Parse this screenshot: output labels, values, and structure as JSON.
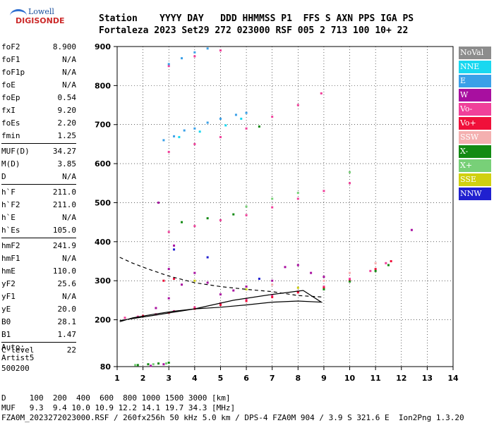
{
  "logo": {
    "top": "Lowell",
    "bottom": "DIGISONDE"
  },
  "header": {
    "line1": "Station    YYYY DAY   DDD HHMMSS P1  FFS S AXN PPS IGA PS",
    "line2": "Fortaleza 2023 Set29 272 023000 RSF 005 2 713 100 10+ 22"
  },
  "params": [
    {
      "name": "foF2",
      "value": "8.900"
    },
    {
      "name": "foF1",
      "value": "N/A"
    },
    {
      "name": "foF1p",
      "value": "N/A"
    },
    {
      "name": "foE",
      "value": "N/A"
    },
    {
      "name": "foEp",
      "value": "0.54"
    },
    {
      "name": "fxI",
      "value": "9.20"
    },
    {
      "name": "foEs",
      "value": "2.20"
    },
    {
      "name": "fmin",
      "value": "1.25"
    },
    {
      "sep": true
    },
    {
      "name": "MUF(D)",
      "value": "34.27"
    },
    {
      "name": "M(D)",
      "value": "3.85"
    },
    {
      "name": "D",
      "value": "N/A"
    },
    {
      "sep": true
    },
    {
      "name": "h`F",
      "value": "211.0"
    },
    {
      "name": "h`F2",
      "value": "211.0"
    },
    {
      "name": "h`E",
      "value": "N/A"
    },
    {
      "name": "h`Es",
      "value": "105.0"
    },
    {
      "sep": true
    },
    {
      "name": "hmF2",
      "value": "241.9"
    },
    {
      "name": "hmF1",
      "value": "N/A"
    },
    {
      "name": "hmE",
      "value": "110.0"
    },
    {
      "name": "yF2",
      "value": "25.6"
    },
    {
      "name": "yF1",
      "value": "N/A"
    },
    {
      "name": "yE",
      "value": "20.0"
    },
    {
      "name": "B0",
      "value": "28.1"
    },
    {
      "name": "B1",
      "value": "1.47"
    },
    {
      "sep": true
    },
    {
      "name": "C-level",
      "value": "22"
    }
  ],
  "auto": {
    "line1": "Auto:",
    "line2": "Artist5",
    "line3": "500200"
  },
  "footer": {
    "line1": "D     100  200  400  600  800 1000 1500 3000 [km]",
    "line2": "MUF   9.3  9.4 10.0 10.9 12.2 14.1 19.7 34.3 [MHz]",
    "line3": "FZA0M_2023272023000.RSF / 260fx256h 50 kHz 5.0 km / DPS-4 FZA0M 904 / 3.9 S 321.6 E  Ion2Png 1.3.20"
  },
  "legend": [
    {
      "label": "NoVal",
      "color": "#8c8c8c"
    },
    {
      "label": "NNE",
      "color": "#19d8f0"
    },
    {
      "label": "E",
      "color": "#3aa0e8"
    },
    {
      "label": "W",
      "color": "#a80fa0"
    },
    {
      "label": "Vo-",
      "color": "#f0409a"
    },
    {
      "label": "Vo+",
      "color": "#f0103a"
    },
    {
      "label": "SSW",
      "color": "#f4b0b0"
    },
    {
      "label": "X-",
      "color": "#128a12"
    },
    {
      "label": "X+",
      "color": "#78d078"
    },
    {
      "label": "SSE",
      "color": "#d0d010"
    },
    {
      "label": "NNW",
      "color": "#2020d0"
    }
  ],
  "chart_data": {
    "type": "scatter",
    "xlim": [
      1,
      14
    ],
    "ylim": [
      80,
      900
    ],
    "xticks": [
      "1",
      "2",
      "3",
      "4",
      "5",
      "6",
      "7",
      "8",
      "9",
      "10",
      "11",
      "12",
      "13",
      "14"
    ],
    "yticks": [
      "80",
      "200",
      "300",
      "400",
      "500",
      "600",
      "700",
      "800",
      "900"
    ],
    "grid": true,
    "series": [
      {
        "mode": "Vo-",
        "color": "#f0409a",
        "points": [
          [
            1.3,
            205
          ],
          [
            1.8,
            208
          ],
          [
            2.5,
            214
          ],
          [
            3.2,
            222
          ],
          [
            4,
            232
          ],
          [
            5,
            242
          ],
          [
            6,
            252
          ],
          [
            7,
            262
          ],
          [
            8,
            272
          ],
          [
            9,
            285
          ],
          [
            10,
            305
          ],
          [
            10.8,
            325
          ],
          [
            11.4,
            345
          ],
          [
            3,
            425
          ],
          [
            4,
            440
          ],
          [
            5,
            455
          ],
          [
            6,
            468
          ],
          [
            7,
            488
          ],
          [
            8,
            510
          ],
          [
            9,
            530
          ],
          [
            10,
            550
          ],
          [
            3,
            630
          ],
          [
            4,
            650
          ],
          [
            5,
            668
          ],
          [
            6,
            690
          ],
          [
            7,
            720
          ],
          [
            8,
            750
          ],
          [
            8.9,
            780
          ],
          [
            3,
            850
          ],
          [
            4,
            875
          ],
          [
            5,
            890
          ]
        ]
      },
      {
        "mode": "Vo+",
        "color": "#f0103a",
        "points": [
          [
            2,
            210
          ],
          [
            3,
            218
          ],
          [
            4,
            228
          ],
          [
            5,
            238
          ],
          [
            6,
            248
          ],
          [
            7,
            258
          ],
          [
            8,
            270
          ],
          [
            9,
            282
          ],
          [
            10,
            300
          ],
          [
            11,
            330
          ],
          [
            11.6,
            350
          ],
          [
            2.8,
            300
          ],
          [
            3.2,
            305
          ]
        ]
      },
      {
        "mode": "X-",
        "color": "#128a12",
        "points": [
          [
            1.8,
            84
          ],
          [
            2.2,
            86
          ],
          [
            2.6,
            88
          ],
          [
            3,
            90
          ],
          [
            3.5,
            450
          ],
          [
            4.5,
            460
          ],
          [
            5.5,
            470
          ],
          [
            6.5,
            695
          ],
          [
            9,
            278
          ],
          [
            10,
            298
          ],
          [
            11,
            325
          ],
          [
            11.5,
            340
          ]
        ]
      },
      {
        "mode": "X+",
        "color": "#78d078",
        "points": [
          [
            1.7,
            84
          ],
          [
            2.4,
            86
          ],
          [
            2.9,
            88
          ],
          [
            6,
            490
          ],
          [
            7,
            510
          ],
          [
            8,
            525
          ],
          [
            10,
            578
          ]
        ]
      },
      {
        "mode": "E",
        "color": "#3aa0e8",
        "points": [
          [
            2.8,
            660
          ],
          [
            3.2,
            670
          ],
          [
            3.6,
            685
          ],
          [
            4,
            690
          ],
          [
            4.5,
            705
          ],
          [
            5,
            715
          ],
          [
            5.6,
            725
          ],
          [
            6,
            730
          ],
          [
            3,
            855
          ],
          [
            3.5,
            870
          ],
          [
            4,
            885
          ],
          [
            4.5,
            895
          ]
        ]
      },
      {
        "mode": "W",
        "color": "#a80fa0",
        "points": [
          [
            2.5,
            230
          ],
          [
            3,
            255
          ],
          [
            3.5,
            290
          ],
          [
            4,
            320
          ],
          [
            4.5,
            295
          ],
          [
            5,
            265
          ],
          [
            5.5,
            275
          ],
          [
            6,
            285
          ],
          [
            7,
            300
          ],
          [
            7.5,
            335
          ],
          [
            8,
            340
          ],
          [
            8.5,
            320
          ],
          [
            9,
            310
          ],
          [
            2.6,
            500
          ],
          [
            3,
            330
          ],
          [
            3.2,
            390
          ],
          [
            12.4,
            430
          ],
          [
            2.3,
            82
          ],
          [
            2.8,
            86
          ]
        ]
      },
      {
        "mode": "NNE",
        "color": "#19d8f0",
        "points": [
          [
            3.4,
            668
          ],
          [
            4.2,
            682
          ],
          [
            5.2,
            698
          ],
          [
            5.8,
            715
          ]
        ]
      },
      {
        "mode": "NNW",
        "color": "#2020d0",
        "points": [
          [
            3.2,
            380
          ],
          [
            4.5,
            360
          ],
          [
            6.5,
            305
          ]
        ]
      },
      {
        "mode": "SSW",
        "color": "#f4b0b0",
        "points": [
          [
            9,
            300
          ],
          [
            10,
            320
          ],
          [
            11,
            345
          ],
          [
            7,
            290
          ]
        ]
      },
      {
        "mode": "SSE",
        "color": "#d0d010",
        "points": [
          [
            4,
            300
          ],
          [
            6,
            278
          ],
          [
            8,
            282
          ]
        ]
      }
    ],
    "curves": [
      {
        "name": "solid",
        "color": "#000",
        "points": [
          [
            1.1,
            198
          ],
          [
            2.5,
            212
          ],
          [
            4,
            228
          ],
          [
            5.5,
            250
          ],
          [
            7,
            265
          ],
          [
            8.2,
            275
          ],
          [
            8.9,
            245
          ],
          [
            8,
            248
          ],
          [
            7,
            245
          ],
          [
            6,
            238
          ],
          [
            5,
            232
          ],
          [
            4,
            228
          ],
          [
            3.2,
            222
          ],
          [
            2.4,
            214
          ],
          [
            1.6,
            205
          ],
          [
            1.1,
            195
          ]
        ]
      },
      {
        "name": "dashed",
        "color": "#000",
        "points": [
          [
            1.1,
            360
          ],
          [
            1.6,
            345
          ],
          [
            2.2,
            330
          ],
          [
            3,
            312
          ],
          [
            4,
            295
          ],
          [
            5,
            285
          ],
          [
            6,
            278
          ],
          [
            7,
            272
          ],
          [
            8,
            262
          ],
          [
            9,
            258
          ]
        ]
      }
    ]
  }
}
